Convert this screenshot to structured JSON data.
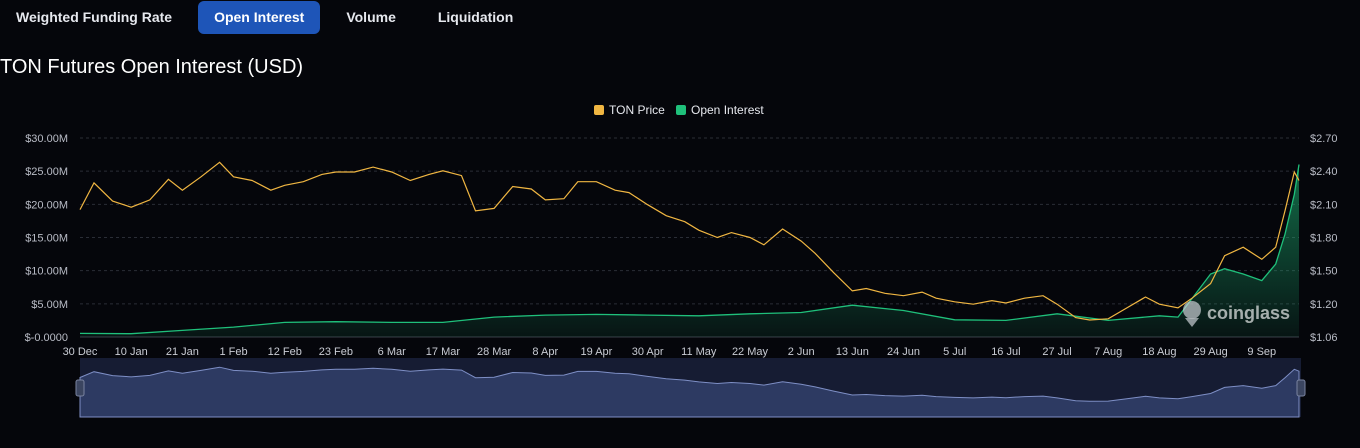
{
  "tabs": [
    {
      "label": "Weighted Funding Rate",
      "active": false
    },
    {
      "label": "Open Interest",
      "active": true
    },
    {
      "label": "Volume",
      "active": false
    },
    {
      "label": "Liquidation",
      "active": false
    }
  ],
  "watermark": "coinglass",
  "colors": {
    "price": "#f0b642",
    "oi": "#1fc07b",
    "accent": "#1e55b8"
  },
  "chart_data": {
    "type": "line",
    "title": "TON Futures Open Interest (USD)",
    "legend": [
      "TON Price",
      "Open Interest"
    ],
    "legend_position": "top-center",
    "grid": true,
    "y_left": {
      "ticks": [
        "$-0.0000",
        "$5.00M",
        "$10.00M",
        "$15.00M",
        "$20.00M",
        "$25.00M",
        "$30.00M"
      ],
      "range": [
        0,
        30000000
      ]
    },
    "y_right": {
      "ticks": [
        "$1.06",
        "$1.20",
        "$1.50",
        "$1.80",
        "$2.10",
        "$2.40",
        "$2.70"
      ],
      "range": [
        1.06,
        2.7
      ]
    },
    "x_ticks": [
      "30 Dec",
      "10 Jan",
      "21 Jan",
      "1 Feb",
      "12 Feb",
      "23 Feb",
      "6 Mar",
      "17 Mar",
      "28 Mar",
      "8 Apr",
      "19 Apr",
      "30 Apr",
      "11 May",
      "22 May",
      "2 Jun",
      "13 Jun",
      "24 Jun",
      "5 Jul",
      "16 Jul",
      "27 Jul",
      "7 Aug",
      "18 Aug",
      "29 Aug",
      "9 Sep"
    ],
    "series": [
      {
        "name": "TON Price",
        "axis": "right",
        "points": [
          [
            "30 Dec",
            2.11
          ],
          [
            "2 Jan",
            2.33
          ],
          [
            "6 Jan",
            2.18
          ],
          [
            "10 Jan",
            2.13
          ],
          [
            "14 Jan",
            2.19
          ],
          [
            "18 Jan",
            2.36
          ],
          [
            "21 Jan",
            2.27
          ],
          [
            "25 Jan",
            2.38
          ],
          [
            "29 Jan",
            2.5
          ],
          [
            "1 Feb",
            2.38
          ],
          [
            "5 Feb",
            2.35
          ],
          [
            "9 Feb",
            2.27
          ],
          [
            "12 Feb",
            2.31
          ],
          [
            "16 Feb",
            2.34
          ],
          [
            "20 Feb",
            2.4
          ],
          [
            "23 Feb",
            2.42
          ],
          [
            "27 Feb",
            2.42
          ],
          [
            "2 Mar",
            2.46
          ],
          [
            "6 Mar",
            2.42
          ],
          [
            "10 Mar",
            2.35
          ],
          [
            "14 Mar",
            2.4
          ],
          [
            "17 Mar",
            2.43
          ],
          [
            "21 Mar",
            2.39
          ],
          [
            "24 Mar",
            2.1
          ],
          [
            "28 Mar",
            2.12
          ],
          [
            "1 Apr",
            2.3
          ],
          [
            "5 Apr",
            2.28
          ],
          [
            "8 Apr",
            2.19
          ],
          [
            "12 Apr",
            2.2
          ],
          [
            "15 Apr",
            2.34
          ],
          [
            "19 Apr",
            2.34
          ],
          [
            "23 Apr",
            2.27
          ],
          [
            "26 Apr",
            2.25
          ],
          [
            "30 Apr",
            2.15
          ],
          [
            "4 May",
            2.06
          ],
          [
            "8 May",
            2.01
          ],
          [
            "11 May",
            1.94
          ],
          [
            "15 May",
            1.88
          ],
          [
            "18 May",
            1.92
          ],
          [
            "22 May",
            1.88
          ],
          [
            "25 May",
            1.82
          ],
          [
            "29 May",
            1.95
          ],
          [
            "2 Jun",
            1.85
          ],
          [
            "5 Jun",
            1.75
          ],
          [
            "9 Jun",
            1.59
          ],
          [
            "13 Jun",
            1.44
          ],
          [
            "16 Jun",
            1.46
          ],
          [
            "20 Jun",
            1.42
          ],
          [
            "24 Jun",
            1.4
          ],
          [
            "28 Jun",
            1.43
          ],
          [
            "1 Jul",
            1.38
          ],
          [
            "5 Jul",
            1.35
          ],
          [
            "9 Jul",
            1.33
          ],
          [
            "13 Jul",
            1.36
          ],
          [
            "16 Jul",
            1.34
          ],
          [
            "20 Jul",
            1.38
          ],
          [
            "24 Jul",
            1.4
          ],
          [
            "27 Jul",
            1.33
          ],
          [
            "31 Jul",
            1.22
          ],
          [
            "3 Aug",
            1.2
          ],
          [
            "7 Aug",
            1.21
          ],
          [
            "11 Aug",
            1.3
          ],
          [
            "15 Aug",
            1.39
          ],
          [
            "18 Aug",
            1.33
          ],
          [
            "22 Aug",
            1.3
          ],
          [
            "25 Aug",
            1.38
          ],
          [
            "29 Aug",
            1.5
          ],
          [
            "1 Sep",
            1.73
          ],
          [
            "5 Sep",
            1.8
          ],
          [
            "9 Sep",
            1.7
          ],
          [
            "12 Sep",
            1.8
          ],
          [
            "14 Sep",
            2.1
          ],
          [
            "16 Sep",
            2.42
          ],
          [
            "17 Sep",
            2.35
          ]
        ]
      },
      {
        "name": "Open Interest",
        "axis": "left",
        "points": [
          [
            "30 Dec",
            550000
          ],
          [
            "10 Jan",
            500000
          ],
          [
            "21 Jan",
            1000000
          ],
          [
            "1 Feb",
            1500000
          ],
          [
            "12 Feb",
            2200000
          ],
          [
            "23 Feb",
            2300000
          ],
          [
            "6 Mar",
            2200000
          ],
          [
            "17 Mar",
            2200000
          ],
          [
            "28 Mar",
            3000000
          ],
          [
            "8 Apr",
            3300000
          ],
          [
            "19 Apr",
            3400000
          ],
          [
            "30 Apr",
            3300000
          ],
          [
            "11 May",
            3200000
          ],
          [
            "22 May",
            3500000
          ],
          [
            "2 Jun",
            3700000
          ],
          [
            "13 Jun",
            4800000
          ],
          [
            "24 Jun",
            4000000
          ],
          [
            "5 Jul",
            2600000
          ],
          [
            "16 Jul",
            2500000
          ],
          [
            "27 Jul",
            3500000
          ],
          [
            "7 Aug",
            2500000
          ],
          [
            "18 Aug",
            3200000
          ],
          [
            "22 Aug",
            3000000
          ],
          [
            "29 Aug",
            9500000
          ],
          [
            "1 Sep",
            10300000
          ],
          [
            "5 Sep",
            9500000
          ],
          [
            "9 Sep",
            8500000
          ],
          [
            "12 Sep",
            11000000
          ],
          [
            "14 Sep",
            15500000
          ],
          [
            "16 Sep",
            21500000
          ],
          [
            "17 Sep",
            26000000
          ]
        ]
      }
    ]
  }
}
